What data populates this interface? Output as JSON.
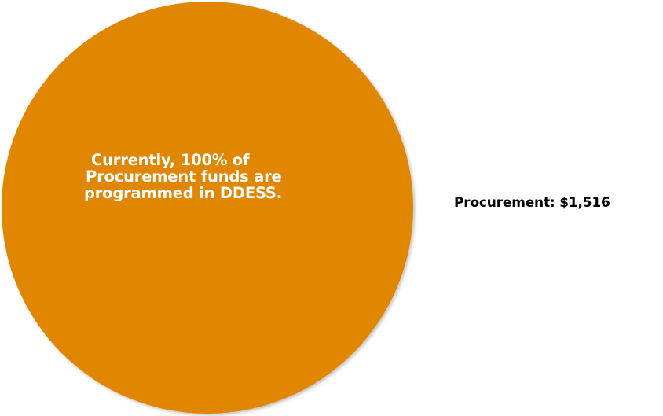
{
  "chart_data": {
    "type": "pie",
    "title": "",
    "slices": [
      {
        "label": "Procurement: $1,516",
        "name": "Procurement",
        "value": 1516,
        "percent": 100,
        "color": "#E08600"
      }
    ],
    "annotation_lines": [
      "Currently, 100% of",
      "Procurement funds are",
      "programmed in DDESS."
    ]
  }
}
